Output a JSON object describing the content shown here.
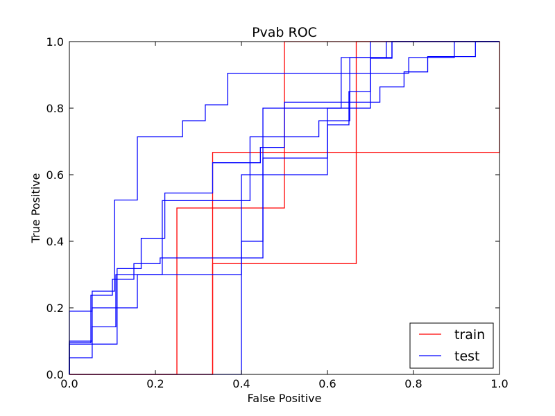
{
  "chart_data": {
    "type": "line",
    "title": "Pvab ROC",
    "xlabel": "False Positive",
    "ylabel": "True Positive",
    "xlim": [
      0.0,
      1.0
    ],
    "ylim": [
      0.0,
      1.0
    ],
    "xticks": [
      "0.0",
      "0.2",
      "0.4",
      "0.6",
      "0.8",
      "1.0"
    ],
    "yticks": [
      "0.0",
      "0.2",
      "0.4",
      "0.6",
      "0.8",
      "1.0"
    ],
    "grid": false,
    "legend_position": "lower right",
    "colors": {
      "train": "#ff0000",
      "test": "#0000ff"
    },
    "legend": [
      {
        "label": "train",
        "color": "#ff0000"
      },
      {
        "label": "test",
        "color": "#0000ff"
      }
    ],
    "series": [
      {
        "name": "train",
        "color": "#ff0000",
        "points": [
          [
            0,
            0
          ],
          [
            0.25,
            0
          ],
          [
            0.25,
            0.5
          ],
          [
            0.5,
            0.5
          ],
          [
            0.5,
            1.0
          ],
          [
            1.0,
            1.0
          ]
        ]
      },
      {
        "color": "#ff0000",
        "points": [
          [
            0,
            0
          ],
          [
            0.333,
            0
          ],
          [
            0.333,
            0.667
          ],
          [
            1.0,
            0.667
          ],
          [
            1.0,
            1.0
          ]
        ]
      },
      {
        "color": "#ff0000",
        "points": [
          [
            0,
            0
          ],
          [
            0.333,
            0
          ],
          [
            0.333,
            0.333
          ],
          [
            0.667,
            0.333
          ],
          [
            0.667,
            1.0
          ],
          [
            1.0,
            1.0
          ]
        ]
      },
      {
        "name": "test",
        "color": "#0000ff",
        "points": [
          [
            0,
            0
          ],
          [
            0,
            0.19
          ],
          [
            0.053,
            0.19
          ],
          [
            0.053,
            0.25
          ],
          [
            0.105,
            0.25
          ],
          [
            0.105,
            0.524
          ],
          [
            0.158,
            0.524
          ],
          [
            0.158,
            0.714
          ],
          [
            0.263,
            0.714
          ],
          [
            0.263,
            0.762
          ],
          [
            0.316,
            0.762
          ],
          [
            0.316,
            0.81
          ],
          [
            0.368,
            0.81
          ],
          [
            0.368,
            0.905
          ],
          [
            0.789,
            0.905
          ],
          [
            0.789,
            0.952
          ],
          [
            0.895,
            0.952
          ],
          [
            0.895,
            1.0
          ],
          [
            1.0,
            1.0
          ]
        ]
      },
      {
        "color": "#0000ff",
        "points": [
          [
            0,
            0
          ],
          [
            0,
            0.1
          ],
          [
            0.053,
            0.1
          ],
          [
            0.053,
            0.2
          ],
          [
            0.158,
            0.2
          ],
          [
            0.158,
            0.3
          ],
          [
            0.4,
            0.3
          ],
          [
            0.4,
            0.4
          ],
          [
            0.45,
            0.4
          ],
          [
            0.45,
            0.65
          ],
          [
            0.6,
            0.65
          ],
          [
            0.6,
            0.8
          ],
          [
            0.7,
            0.8
          ],
          [
            0.7,
            1.0
          ],
          [
            1.0,
            1.0
          ]
        ]
      },
      {
        "color": "#0000ff",
        "points": [
          [
            0,
            0
          ],
          [
            0,
            0.05
          ],
          [
            0.053,
            0.05
          ],
          [
            0.053,
            0.143
          ],
          [
            0.108,
            0.143
          ],
          [
            0.108,
            0.3
          ],
          [
            0.216,
            0.3
          ],
          [
            0.216,
            0.522
          ],
          [
            0.42,
            0.522
          ],
          [
            0.42,
            0.714
          ],
          [
            0.58,
            0.714
          ],
          [
            0.58,
            0.762
          ],
          [
            0.652,
            0.762
          ],
          [
            0.652,
            0.952
          ],
          [
            0.75,
            0.952
          ],
          [
            0.75,
            1.0
          ],
          [
            1.0,
            1.0
          ]
        ]
      },
      {
        "color": "#0000ff",
        "points": [
          [
            0,
            0
          ],
          [
            0,
            0.091
          ],
          [
            0.111,
            0.091
          ],
          [
            0.111,
            0.318
          ],
          [
            0.167,
            0.318
          ],
          [
            0.167,
            0.409
          ],
          [
            0.222,
            0.409
          ],
          [
            0.222,
            0.545
          ],
          [
            0.333,
            0.545
          ],
          [
            0.333,
            0.636
          ],
          [
            0.444,
            0.636
          ],
          [
            0.444,
            0.682
          ],
          [
            0.5,
            0.682
          ],
          [
            0.5,
            0.818
          ],
          [
            0.722,
            0.818
          ],
          [
            0.722,
            0.864
          ],
          [
            0.778,
            0.864
          ],
          [
            0.778,
            0.909
          ],
          [
            0.833,
            0.909
          ],
          [
            0.833,
            0.955
          ],
          [
            0.944,
            0.955
          ],
          [
            0.944,
            1.0
          ],
          [
            1.0,
            1.0
          ]
        ]
      },
      {
        "color": "#0000ff",
        "points": [
          [
            0,
            0
          ],
          [
            0,
            0.095
          ],
          [
            0.05,
            0.095
          ],
          [
            0.05,
            0.238
          ],
          [
            0.1,
            0.238
          ],
          [
            0.1,
            0.286
          ],
          [
            0.15,
            0.286
          ],
          [
            0.15,
            0.333
          ],
          [
            0.211,
            0.333
          ],
          [
            0.211,
            0.35
          ],
          [
            0.45,
            0.35
          ],
          [
            0.45,
            0.8
          ],
          [
            0.632,
            0.8
          ],
          [
            0.632,
            0.952
          ],
          [
            0.737,
            0.952
          ],
          [
            0.737,
            1.0
          ],
          [
            1.0,
            1.0
          ]
        ]
      },
      {
        "color": "#0000ff",
        "points": [
          [
            0,
            0
          ],
          [
            0.4,
            0
          ],
          [
            0.4,
            0.6
          ],
          [
            0.6,
            0.6
          ],
          [
            0.6,
            0.75
          ],
          [
            0.65,
            0.75
          ],
          [
            0.65,
            0.85
          ],
          [
            0.7,
            0.85
          ],
          [
            0.7,
            0.95
          ],
          [
            0.75,
            0.95
          ],
          [
            0.75,
            1.0
          ],
          [
            1.0,
            1.0
          ]
        ]
      }
    ]
  }
}
